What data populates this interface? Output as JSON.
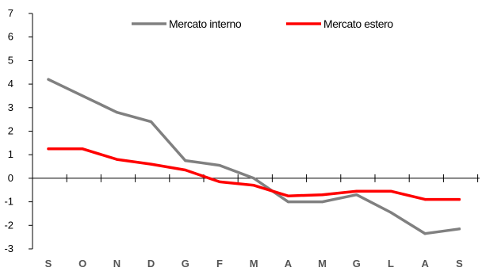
{
  "chart_data": {
    "type": "line",
    "title": "",
    "xlabel": "",
    "ylabel": "",
    "categories": [
      "S",
      "O",
      "N",
      "D",
      "G",
      "F",
      "M",
      "A",
      "M",
      "G",
      "L",
      "A",
      "S"
    ],
    "ylim": [
      -3,
      7
    ],
    "yticks": [
      -3,
      -2,
      -1,
      0,
      1,
      2,
      3,
      4,
      5,
      6,
      7
    ],
    "grid": false,
    "legend_position": "top-right",
    "series": [
      {
        "name": "Mercato interno",
        "color": "#808080",
        "values": [
          4.2,
          3.5,
          2.8,
          2.4,
          0.75,
          0.55,
          0.0,
          -1.0,
          -1.0,
          -0.7,
          -1.45,
          -2.35,
          -2.15
        ]
      },
      {
        "name": "Mercato estero",
        "color": "#ff0000",
        "values": [
          1.25,
          1.25,
          0.8,
          0.6,
          0.35,
          -0.15,
          -0.3,
          -0.75,
          -0.7,
          -0.55,
          -0.55,
          -0.9,
          -0.9
        ]
      }
    ]
  }
}
